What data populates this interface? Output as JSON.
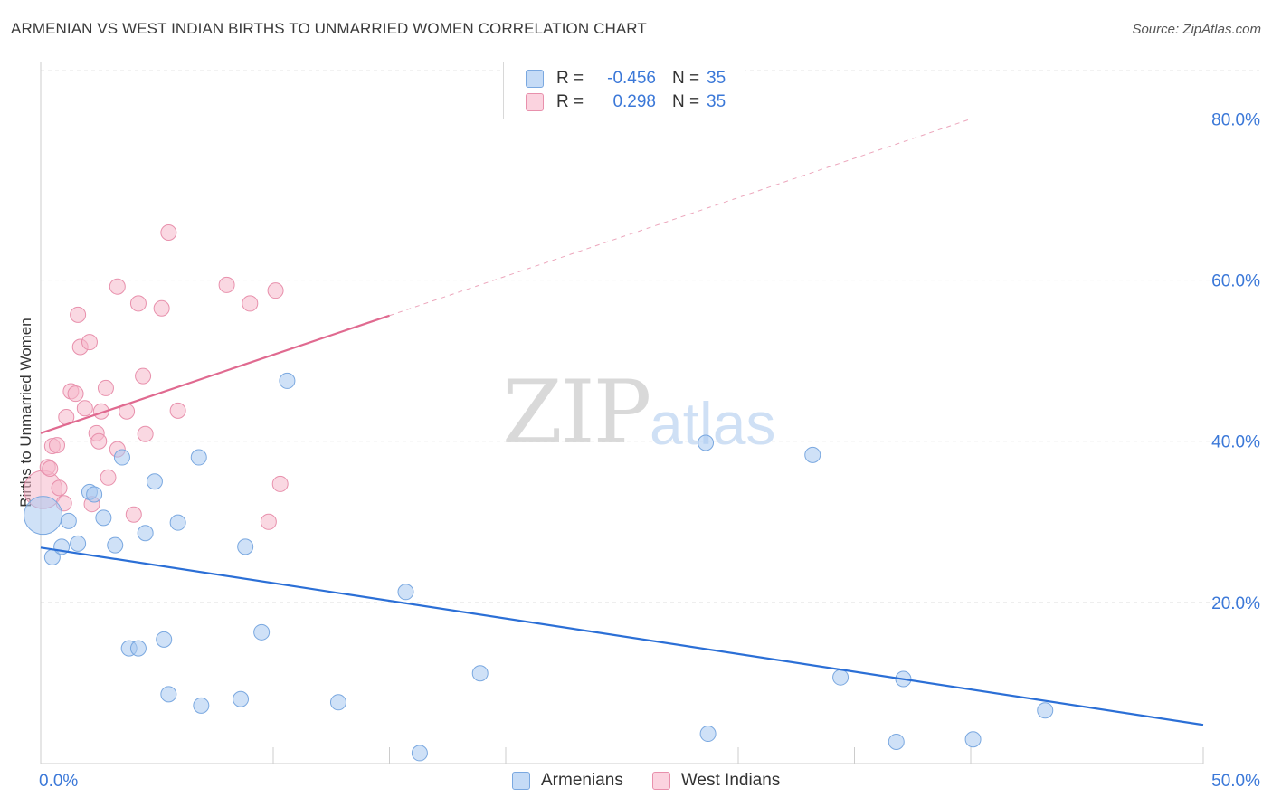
{
  "header": {
    "title": "ARMENIAN VS WEST INDIAN BIRTHS TO UNMARRIED WOMEN CORRELATION CHART",
    "source": "Source: ZipAtlas.com"
  },
  "watermark": {
    "zip": "ZIP",
    "atlas": "atlas"
  },
  "legend": {
    "rows": [
      {
        "r_label": "R =",
        "r_value": "-0.456",
        "n_label": "N =",
        "n_value": "35",
        "color": "#a8c8f0"
      },
      {
        "r_label": "R =",
        "r_value": "0.298",
        "n_label": "N =",
        "n_value": "35",
        "color": "#f5b8cb"
      }
    ]
  },
  "bottom_legend": {
    "armenians": "Armenians",
    "west_indians": "West Indians"
  },
  "colors": {
    "blue_fill": "#a8c8f0",
    "blue_stroke": "#7aa8e0",
    "blue_line": "#2b6fd6",
    "pink_fill": "#f5b8cb",
    "pink_stroke": "#e890ac",
    "pink_line": "#e06a90",
    "tick_label": "#3b78d8",
    "grid": "#e4e4e4"
  },
  "chart_data": {
    "type": "scatter",
    "title": "ARMENIAN VS WEST INDIAN BIRTHS TO UNMARRIED WOMEN CORRELATION CHART",
    "xlabel": "",
    "ylabel": "Births to Unmarried Women",
    "xlim": [
      0,
      50
    ],
    "ylim": [
      0,
      86
    ],
    "x_tick_labels": [
      "0.0%",
      "50.0%"
    ],
    "y_ticks": [
      20,
      40,
      60,
      80
    ],
    "y_tick_labels": [
      "20.0%",
      "40.0%",
      "60.0%",
      "80.0%"
    ],
    "grid": true,
    "legend_position": "top-center",
    "series": [
      {
        "name": "Armenians",
        "color": "#a8c8f0",
        "trend": {
          "x": [
            0,
            50
          ],
          "y": [
            26.8,
            4.8
          ],
          "dashed_extension": false
        },
        "points": [
          {
            "x": 0.1,
            "y": 30.8,
            "big": true
          },
          {
            "x": 0.5,
            "y": 25.6
          },
          {
            "x": 0.9,
            "y": 26.9
          },
          {
            "x": 1.2,
            "y": 30.1
          },
          {
            "x": 1.6,
            "y": 27.3
          },
          {
            "x": 2.1,
            "y": 33.7
          },
          {
            "x": 2.3,
            "y": 33.4
          },
          {
            "x": 2.7,
            "y": 30.5
          },
          {
            "x": 3.2,
            "y": 27.1
          },
          {
            "x": 3.5,
            "y": 38.0
          },
          {
            "x": 3.8,
            "y": 14.3
          },
          {
            "x": 4.2,
            "y": 14.3
          },
          {
            "x": 4.5,
            "y": 28.6
          },
          {
            "x": 4.9,
            "y": 35.0
          },
          {
            "x": 5.3,
            "y": 15.4
          },
          {
            "x": 5.5,
            "y": 8.6
          },
          {
            "x": 5.9,
            "y": 29.9
          },
          {
            "x": 6.8,
            "y": 38.0
          },
          {
            "x": 6.9,
            "y": 7.2
          },
          {
            "x": 8.6,
            "y": 8.0
          },
          {
            "x": 8.8,
            "y": 26.9
          },
          {
            "x": 9.5,
            "y": 16.3
          },
          {
            "x": 10.6,
            "y": 47.5
          },
          {
            "x": 12.8,
            "y": 7.6
          },
          {
            "x": 15.7,
            "y": 21.3
          },
          {
            "x": 16.3,
            "y": 1.3
          },
          {
            "x": 18.9,
            "y": 11.2
          },
          {
            "x": 28.6,
            "y": 39.8
          },
          {
            "x": 28.7,
            "y": 3.7
          },
          {
            "x": 33.2,
            "y": 38.3
          },
          {
            "x": 34.4,
            "y": 10.7
          },
          {
            "x": 36.8,
            "y": 2.7
          },
          {
            "x": 37.1,
            "y": 10.5
          },
          {
            "x": 40.1,
            "y": 3.0
          },
          {
            "x": 43.2,
            "y": 6.6
          }
        ]
      },
      {
        "name": "West Indians",
        "color": "#f5b8cb",
        "trend": {
          "x": [
            0,
            15
          ],
          "y": [
            41.0,
            55.6
          ],
          "dash_to": [
            40,
            80
          ]
        },
        "points": [
          {
            "x": 0.1,
            "y": 34.0,
            "big": true
          },
          {
            "x": 0.3,
            "y": 36.8
          },
          {
            "x": 0.4,
            "y": 36.6
          },
          {
            "x": 0.5,
            "y": 39.4
          },
          {
            "x": 0.7,
            "y": 39.5
          },
          {
            "x": 0.8,
            "y": 34.2
          },
          {
            "x": 1.0,
            "y": 32.3
          },
          {
            "x": 1.1,
            "y": 43.0
          },
          {
            "x": 1.3,
            "y": 46.2
          },
          {
            "x": 1.5,
            "y": 45.9
          },
          {
            "x": 1.6,
            "y": 55.7
          },
          {
            "x": 1.7,
            "y": 51.7
          },
          {
            "x": 1.9,
            "y": 44.1
          },
          {
            "x": 2.1,
            "y": 52.3
          },
          {
            "x": 2.2,
            "y": 32.2
          },
          {
            "x": 2.4,
            "y": 41.0
          },
          {
            "x": 2.5,
            "y": 40.0
          },
          {
            "x": 2.6,
            "y": 43.7
          },
          {
            "x": 2.8,
            "y": 46.6
          },
          {
            "x": 2.9,
            "y": 35.5
          },
          {
            "x": 3.3,
            "y": 59.2
          },
          {
            "x": 3.3,
            "y": 39.0
          },
          {
            "x": 3.7,
            "y": 43.7
          },
          {
            "x": 4.0,
            "y": 30.9
          },
          {
            "x": 4.2,
            "y": 57.1
          },
          {
            "x": 4.4,
            "y": 48.1
          },
          {
            "x": 4.5,
            "y": 40.9
          },
          {
            "x": 5.2,
            "y": 56.5
          },
          {
            "x": 5.5,
            "y": 65.9
          },
          {
            "x": 5.9,
            "y": 43.8
          },
          {
            "x": 8.0,
            "y": 59.4
          },
          {
            "x": 9.0,
            "y": 57.1
          },
          {
            "x": 9.8,
            "y": 30.0
          },
          {
            "x": 10.1,
            "y": 58.7
          },
          {
            "x": 10.3,
            "y": 34.7
          }
        ]
      }
    ]
  }
}
